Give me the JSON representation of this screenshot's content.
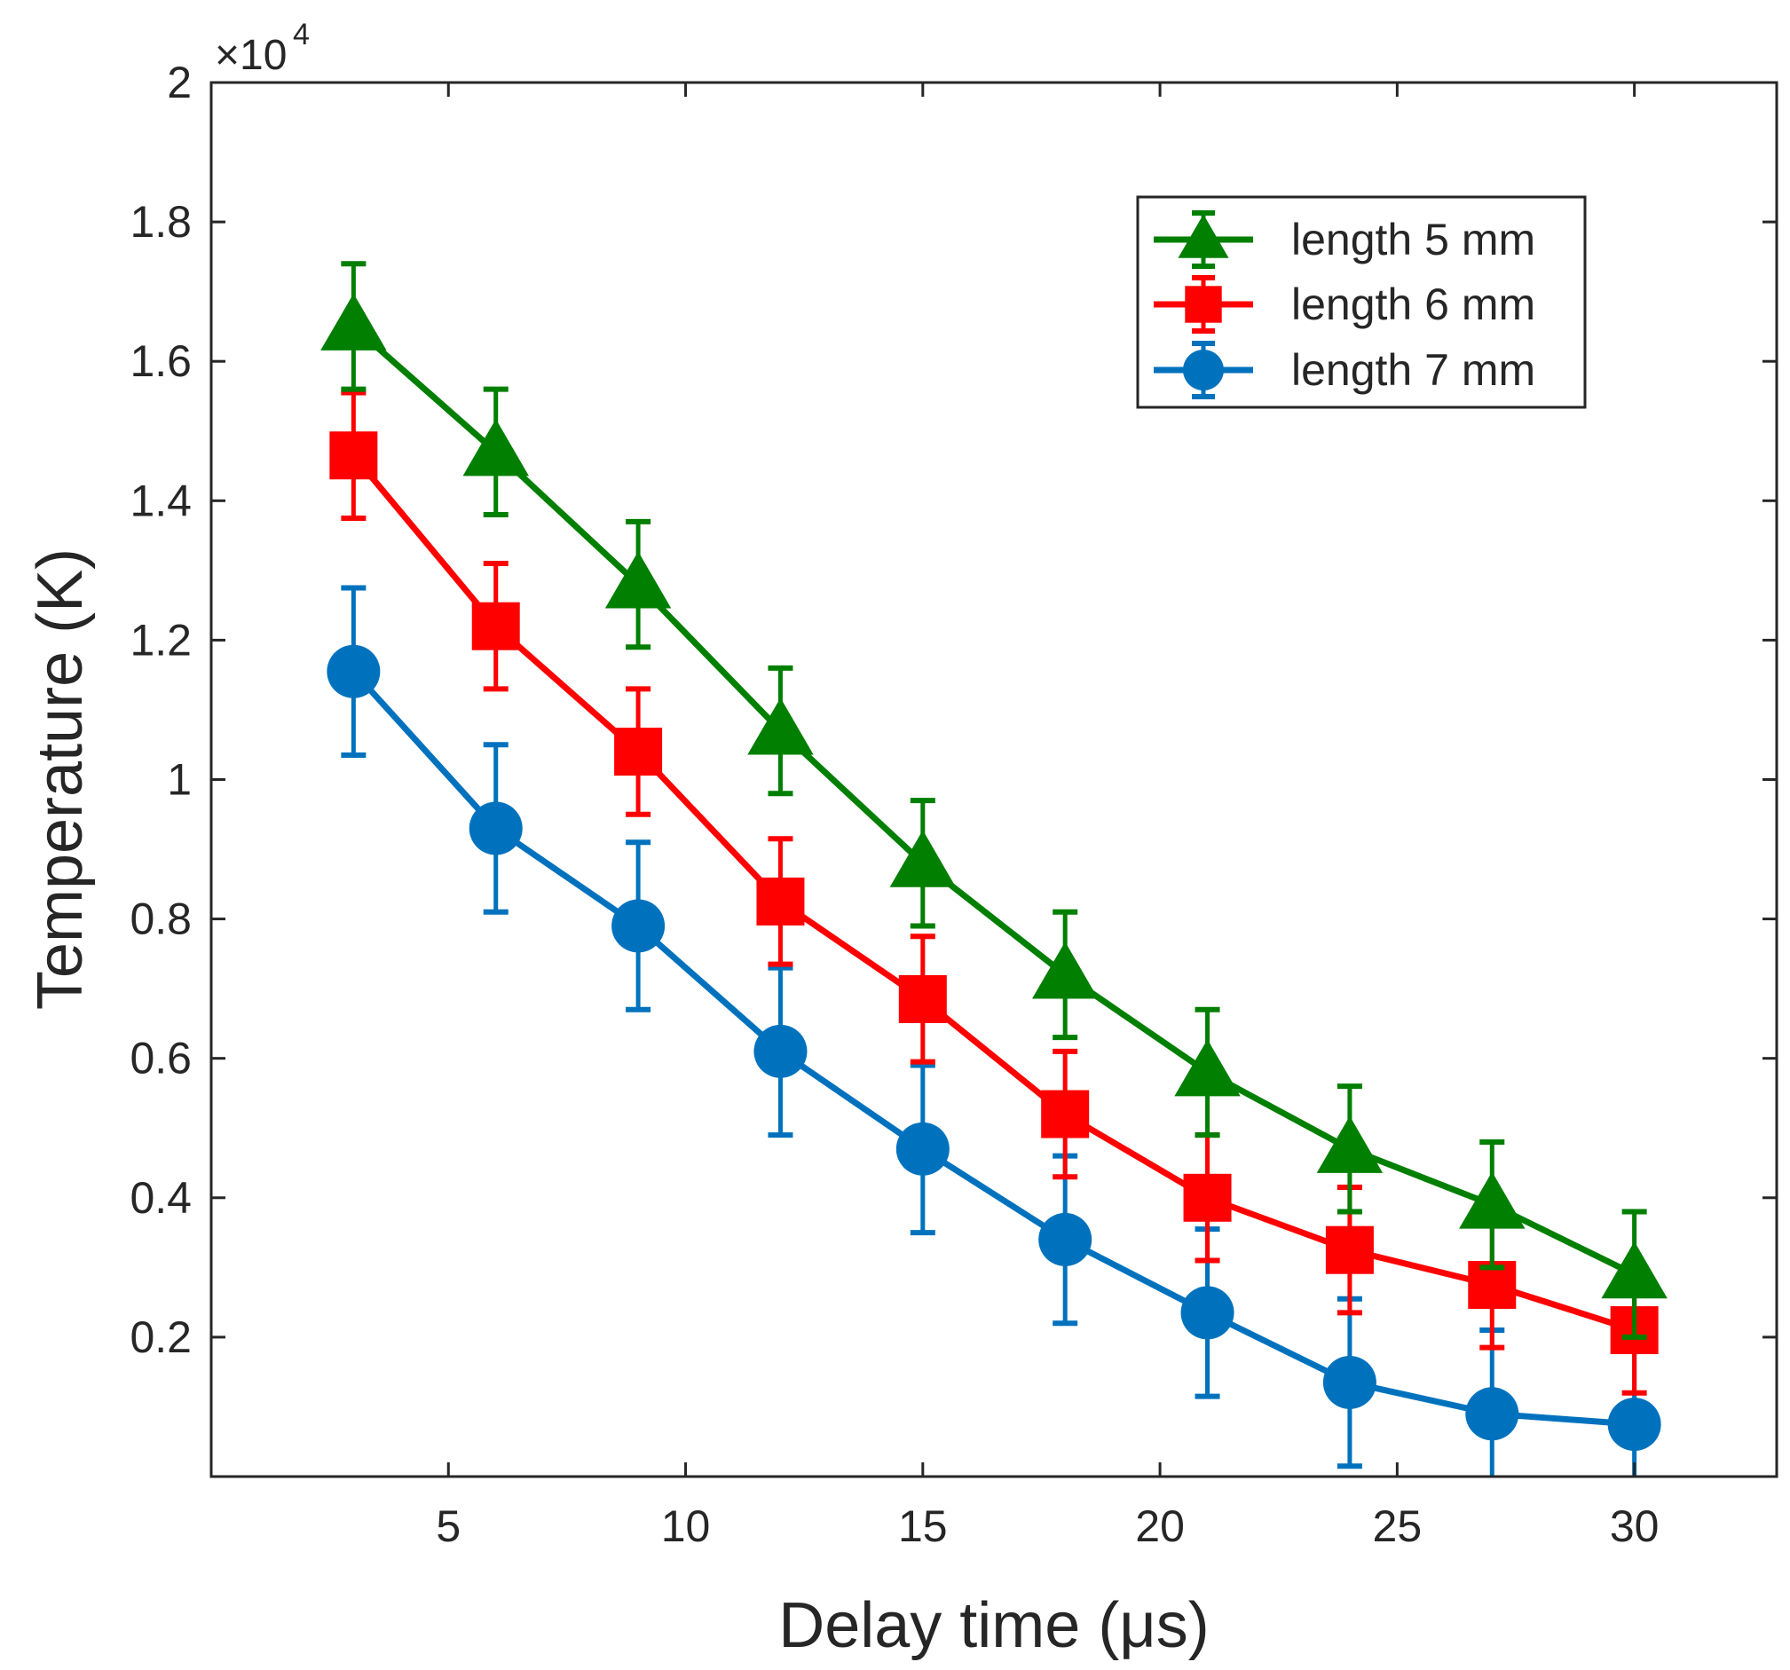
{
  "chart_data": {
    "type": "line",
    "title": "",
    "xlabel": "Delay time (μs)",
    "ylabel": "Temperature (K)",
    "xlim": [
      0,
      33
    ],
    "ylim": [
      0,
      20000
    ],
    "y_scale_factor": 10000,
    "y_exponent_base": "×10",
    "y_exponent_power": "4",
    "x_ticks": [
      5,
      10,
      15,
      20,
      25,
      30
    ],
    "x_tick_labels": [
      "5",
      "10",
      "15",
      "20",
      "25",
      "30"
    ],
    "y_ticks": [
      2000,
      4000,
      6000,
      8000,
      10000,
      12000,
      14000,
      16000,
      18000,
      20000
    ],
    "y_tick_labels": [
      "0.2",
      "0.4",
      "0.6",
      "0.8",
      "1",
      "1.2",
      "1.4",
      "1.6",
      "1.8",
      "2"
    ],
    "grid": false,
    "legend_position": "top-right",
    "x": [
      3,
      6,
      9,
      12,
      15,
      18,
      21,
      24,
      27,
      30
    ],
    "series": [
      {
        "name": "length 5 mm",
        "color": "#007F00",
        "marker": "triangle",
        "values": [
          16500,
          14700,
          12800,
          10700,
          8800,
          7200,
          5800,
          4700,
          3900,
          2900
        ],
        "errors": [
          900,
          900,
          900,
          900,
          900,
          900,
          900,
          900,
          900,
          900
        ]
      },
      {
        "name": "length 6 mm",
        "color": "#FF0000",
        "marker": "square",
        "values": [
          14650,
          12200,
          10400,
          8250,
          6850,
          5200,
          4000,
          3250,
          2750,
          2100
        ],
        "errors": [
          900,
          900,
          900,
          900,
          900,
          900,
          900,
          900,
          900,
          900
        ]
      },
      {
        "name": "length 7 mm",
        "color": "#0072BD",
        "marker": "circle",
        "values": [
          11550,
          9300,
          7900,
          6100,
          4700,
          3400,
          2350,
          1350,
          900,
          750
        ],
        "errors": [
          1200,
          1200,
          1200,
          1200,
          1200,
          1200,
          1200,
          1200,
          1200,
          1200
        ]
      }
    ]
  }
}
